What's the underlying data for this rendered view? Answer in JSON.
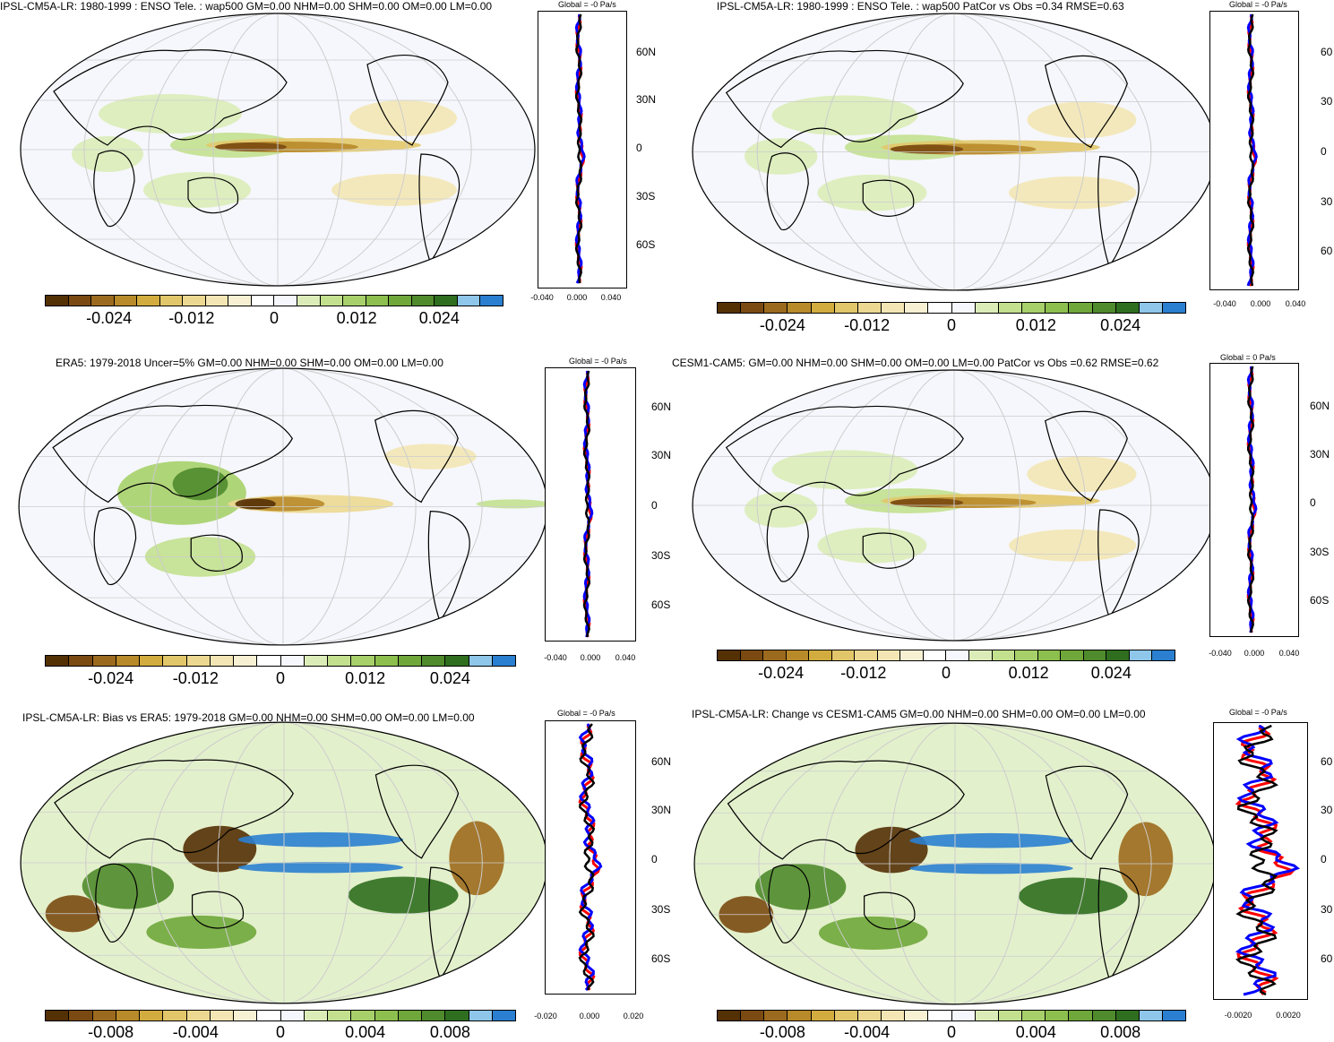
{
  "colorbar_colors": [
    "#543005",
    "#7a4a12",
    "#9c6a1e",
    "#b88a2a",
    "#d2ac3f",
    "#e2c66a",
    "#ecd890",
    "#f3e6b4",
    "#f8f0d3",
    "#ffffff",
    "#f6f7fc",
    "#dcecb8",
    "#c3e08f",
    "#a7d06a",
    "#8cbf4e",
    "#6fa73b",
    "#4f8b2c",
    "#2f6e1f",
    "#8fc7ea",
    "#2a7fd0"
  ],
  "panels": [
    {
      "title": "IPSL-CM5A-LR: 1980-1999 : ENSO Tele. : wap500 GM=0.00 NHM=0.00 SHM=0.00 OM=0.00 LM=0.00",
      "profile_title": "Global = -0 Pa/s",
      "lat_labels": [
        "60N",
        "30N",
        "0",
        "30S",
        "60S"
      ],
      "x_ticks": [
        "-0.040",
        "0.000",
        "0.040"
      ],
      "cbar_labels": [
        "-0.024",
        "-0.012",
        "0",
        "0.012",
        "0.024"
      ]
    },
    {
      "title": "IPSL-CM5A-LR: 1980-1999 : ENSO Tele. : wap500 PatCor vs Obs =0.34 RMSE=0.63",
      "profile_title": "Global = -0 Pa/s",
      "lat_labels": [
        "60",
        "30",
        "0",
        "30",
        "60"
      ],
      "x_ticks": [
        "-0.040",
        "0.000",
        "0.040"
      ],
      "cbar_labels": [
        "-0.024",
        "-0.012",
        "0",
        "0.012",
        "0.024"
      ]
    },
    {
      "title": "ERA5: 1979-2018 Uncer=5% GM=0.00 NHM=0.00 SHM=0.00 OM=0.00 LM=0.00",
      "profile_title": "Global = -0 Pa/s",
      "lat_labels": [
        "60N",
        "30N",
        "0",
        "30S",
        "60S"
      ],
      "x_ticks": [
        "-0.040",
        "0.000",
        "0.040"
      ],
      "cbar_labels": [
        "-0.024",
        "-0.012",
        "0",
        "0.012",
        "0.024"
      ]
    },
    {
      "title": "CESM1-CAM5: GM=0.00 NHM=0.00 SHM=0.00 OM=0.00 LM=0.00 PatCor vs Obs =0.62 RMSE=0.62",
      "profile_title": "Global = 0 Pa/s",
      "lat_labels": [
        "60N",
        "30N",
        "0",
        "30S",
        "60S"
      ],
      "x_ticks": [
        "-0.040",
        "0.000",
        "0.040"
      ],
      "cbar_labels": [
        "-0.024",
        "-0.012",
        "0",
        "0.012",
        "0.024"
      ]
    },
    {
      "title": "IPSL-CM5A-LR: Bias vs ERA5: 1979-2018 GM=0.00 NHM=0.00 SHM=0.00 OM=0.00 LM=0.00",
      "profile_title": "Global = -0 Pa/s",
      "lat_labels": [
        "60N",
        "30N",
        "0",
        "30S",
        "60S"
      ],
      "x_ticks": [
        "-0.020",
        "0.000",
        "0.020"
      ],
      "cbar_labels": [
        "-0.008",
        "-0.004",
        "0",
        "0.004",
        "0.008"
      ]
    },
    {
      "title": "IPSL-CM5A-LR: Change vs CESM1-CAM5 GM=0.00 NHM=0.00 SHM=0.00 OM=0.00 LM=0.00",
      "profile_title": "Global = -0 Pa/s",
      "lat_labels": [
        "60",
        "30",
        "0",
        "30",
        "60"
      ],
      "x_ticks": [
        "-0.0020",
        "0.0020"
      ],
      "cbar_labels": [
        "-0.008",
        "-0.004",
        "0",
        "0.004",
        "0.008"
      ]
    }
  ]
}
